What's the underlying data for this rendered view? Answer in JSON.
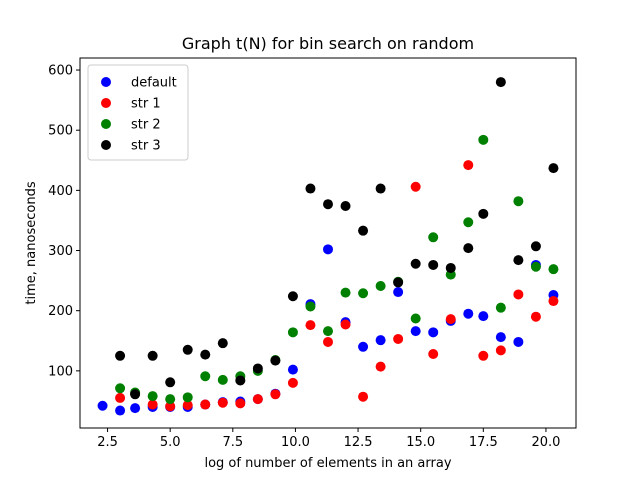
{
  "chart_data": {
    "type": "scatter",
    "title": "Graph t(N) for bin search on random",
    "xlabel": "log of number of elements in an array",
    "ylabel": "time, nanoseconds",
    "xlim": [
      1.4,
      21.2
    ],
    "ylim": [
      5,
      620
    ],
    "xticks": [
      2.5,
      5.0,
      7.5,
      10.0,
      12.5,
      15.0,
      17.5,
      20.0
    ],
    "xtick_labels": [
      "2.5",
      "5.0",
      "7.5",
      "10.0",
      "12.5",
      "15.0",
      "17.5",
      "20.0"
    ],
    "yticks": [
      100,
      200,
      300,
      400,
      500,
      600
    ],
    "ytick_labels": [
      "100",
      "200",
      "300",
      "400",
      "500",
      "600"
    ],
    "grid": false,
    "legend_position": "top-left",
    "series": [
      {
        "name": "default",
        "color": "#0000ff",
        "points": [
          [
            2.3,
            42
          ],
          [
            3.0,
            34
          ],
          [
            3.6,
            38
          ],
          [
            4.3,
            40
          ],
          [
            5.0,
            40
          ],
          [
            5.7,
            40
          ],
          [
            6.4,
            44
          ],
          [
            7.1,
            48
          ],
          [
            7.8,
            49
          ],
          [
            8.5,
            53
          ],
          [
            9.2,
            62
          ],
          [
            9.9,
            102
          ],
          [
            10.6,
            211
          ],
          [
            11.3,
            302
          ],
          [
            12.0,
            181
          ],
          [
            12.7,
            140
          ],
          [
            13.4,
            151
          ],
          [
            14.1,
            231
          ],
          [
            14.8,
            166
          ],
          [
            15.5,
            164
          ],
          [
            16.2,
            183
          ],
          [
            16.9,
            195
          ],
          [
            17.5,
            191
          ],
          [
            18.2,
            156
          ],
          [
            18.9,
            148
          ],
          [
            19.6,
            276
          ],
          [
            20.3,
            226
          ]
        ]
      },
      {
        "name": "str 1",
        "color": "#ff0000",
        "points": [
          [
            3.0,
            55
          ],
          [
            3.6,
            62
          ],
          [
            4.3,
            44
          ],
          [
            5.0,
            41
          ],
          [
            5.7,
            43
          ],
          [
            6.4,
            44
          ],
          [
            7.1,
            47
          ],
          [
            7.8,
            46
          ],
          [
            8.5,
            53
          ],
          [
            9.2,
            61
          ],
          [
            9.9,
            80
          ],
          [
            10.6,
            176
          ],
          [
            11.3,
            148
          ],
          [
            12.0,
            177
          ],
          [
            12.7,
            57
          ],
          [
            13.4,
            107
          ],
          [
            14.1,
            153
          ],
          [
            14.8,
            406
          ],
          [
            15.5,
            128
          ],
          [
            16.2,
            186
          ],
          [
            16.9,
            442
          ],
          [
            17.5,
            125
          ],
          [
            18.2,
            134
          ],
          [
            18.9,
            227
          ],
          [
            19.6,
            190
          ],
          [
            20.3,
            216
          ]
        ]
      },
      {
        "name": "str 2",
        "color": "#008000",
        "points": [
          [
            3.0,
            71
          ],
          [
            3.6,
            64
          ],
          [
            4.3,
            58
          ],
          [
            5.0,
            53
          ],
          [
            5.7,
            56
          ],
          [
            6.4,
            91
          ],
          [
            7.1,
            85
          ],
          [
            7.8,
            91
          ],
          [
            8.5,
            100
          ],
          [
            9.2,
            118
          ],
          [
            9.9,
            164
          ],
          [
            10.6,
            207
          ],
          [
            11.3,
            166
          ],
          [
            12.0,
            230
          ],
          [
            12.7,
            229
          ],
          [
            13.4,
            241
          ],
          [
            14.1,
            248
          ],
          [
            14.8,
            187
          ],
          [
            15.5,
            322
          ],
          [
            16.2,
            260
          ],
          [
            16.9,
            347
          ],
          [
            17.5,
            484
          ],
          [
            18.2,
            205
          ],
          [
            18.9,
            382
          ],
          [
            19.6,
            273
          ],
          [
            20.3,
            269
          ]
        ]
      },
      {
        "name": "str 3",
        "color": "#000000",
        "points": [
          [
            3.0,
            125
          ],
          [
            3.6,
            61
          ],
          [
            4.3,
            125
          ],
          [
            5.0,
            81
          ],
          [
            5.7,
            135
          ],
          [
            6.4,
            127
          ],
          [
            7.1,
            146
          ],
          [
            7.8,
            84
          ],
          [
            8.5,
            104
          ],
          [
            9.2,
            117
          ],
          [
            9.9,
            224
          ],
          [
            10.6,
            403
          ],
          [
            11.3,
            377
          ],
          [
            12.0,
            374
          ],
          [
            12.7,
            333
          ],
          [
            13.4,
            403
          ],
          [
            14.1,
            247
          ],
          [
            14.8,
            278
          ],
          [
            15.5,
            276
          ],
          [
            16.2,
            271
          ],
          [
            16.9,
            304
          ],
          [
            17.5,
            361
          ],
          [
            18.2,
            580
          ],
          [
            18.9,
            284
          ],
          [
            19.6,
            307
          ],
          [
            20.3,
            437
          ]
        ]
      }
    ]
  }
}
